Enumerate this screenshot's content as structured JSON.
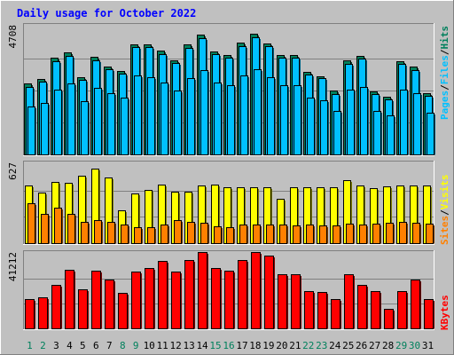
{
  "chart_data": {
    "type": "bar",
    "title": "Daily usage for October 2022",
    "categories": [
      "1",
      "2",
      "3",
      "4",
      "5",
      "6",
      "7",
      "8",
      "9",
      "10",
      "11",
      "12",
      "13",
      "14",
      "15",
      "16",
      "17",
      "18",
      "19",
      "20",
      "21",
      "22",
      "23",
      "24",
      "25",
      "26",
      "27",
      "28",
      "29",
      "30",
      "31"
    ],
    "weekend_days": [
      "1",
      "2",
      "8",
      "9",
      "15",
      "16",
      "22",
      "23",
      "29",
      "30"
    ],
    "panels": [
      {
        "id": "hits",
        "ymax": 4708,
        "ymax_label": "4708",
        "side_label": [
          "Pages",
          "/",
          "Files",
          "/",
          "Hits"
        ],
        "series": [
          {
            "name": "Hits",
            "values": [
              2600,
              2780,
              3560,
              3760,
              2840,
              3590,
              3250,
              3080,
              4070,
              4060,
              3820,
              3480,
              4040,
              4400,
              3800,
              3670,
              4110,
              4440,
              4090,
              3660,
              3670,
              3040,
              2890,
              2340,
              3450,
              3630,
              2310,
              2110,
              3430,
              3230,
              2250
            ]
          },
          {
            "name": "Files",
            "values": [
              2500,
              2680,
              3420,
              3630,
              2730,
              3460,
              3130,
              2960,
              3960,
              3960,
              3700,
              3370,
              3920,
              4290,
              3700,
              3570,
              4000,
              4330,
              3990,
              3560,
              3560,
              2950,
              2800,
              2230,
              3340,
              3520,
              2230,
              2020,
              3320,
              3120,
              2160
            ]
          },
          {
            "name": "Pages",
            "values": [
              1750,
              1900,
              2400,
              2600,
              1950,
              2450,
              2250,
              2100,
              2900,
              2850,
              2650,
              2350,
              2800,
              3100,
              2650,
              2550,
              2900,
              3150,
              2850,
              2550,
              2550,
              2100,
              2000,
              1600,
              2400,
              2500,
              1600,
              1450,
              2400,
              2250,
              1550
            ]
          }
        ]
      },
      {
        "id": "visits",
        "ymax": 627,
        "ymax_label": "627",
        "side_label": [
          "Sites",
          "/",
          "Visits"
        ],
        "series": [
          {
            "name": "Visits",
            "values": [
              460,
              400,
              483,
              482,
              535,
              590,
              520,
              260,
              393,
              423,
              463,
              406,
              406,
              461,
              463,
              441,
              446,
              441,
              446,
              350,
              441,
              441,
              441,
              446,
              500,
              456,
              436,
              449,
              461,
              458,
              461
            ]
          },
          {
            "name": "Sites",
            "values": [
              315,
              235,
              285,
              231,
              171,
              180,
              170,
              151,
              126,
              128,
              148,
              180,
              168,
              162,
              132,
              125,
              149,
              151,
              146,
              150,
              142,
              146,
              144,
              141,
              152,
              148,
              152,
              162,
              170,
              162,
              158
            ]
          }
        ]
      },
      {
        "id": "kbytes",
        "ymax": 41212,
        "ymax_label": "41212",
        "side_label": [
          "KBytes"
        ],
        "series": [
          {
            "name": "KBytes",
            "values": [
              16400,
              17100,
              23800,
              32200,
              21800,
              32000,
              26900,
              19800,
              31200,
              33600,
              37400,
              31200,
              37800,
              42000,
              33600,
              31800,
              37800,
              42000,
              40200,
              29800,
              29800,
              20800,
              20300,
              16100,
              29800,
              24100,
              20800,
              11000,
              20800,
              26900,
              16300
            ]
          }
        ]
      }
    ],
    "colors": {
      "hits": "#00805c",
      "files": "#00c0ff",
      "pages": "#00c0ff",
      "visits": "#ffff00",
      "sites": "#ff8000",
      "kbytes": "#ff0000",
      "title": "#0000ff",
      "weekday_label": "#000000",
      "weekend_label": "#00805c"
    }
  }
}
